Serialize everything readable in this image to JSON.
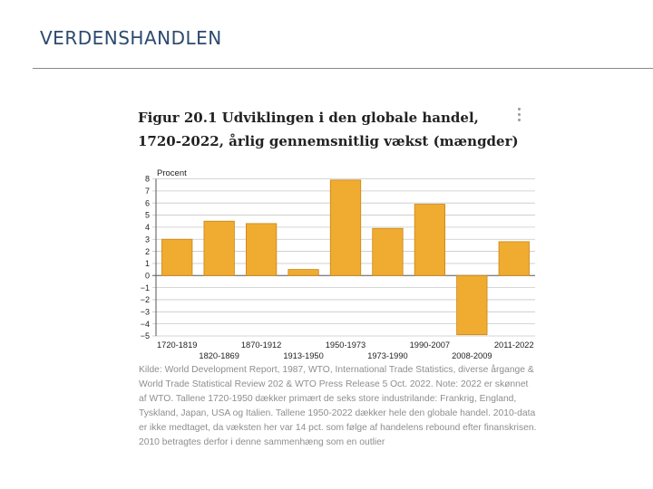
{
  "slide": {
    "title": "VERDENSHANDLEN"
  },
  "figure": {
    "title": "Figur 20.1 Udviklingen i den globale handel, 1720-2022, årlig gennemsnitlig vækst (mængder)",
    "menu_icon": "kebab-menu-icon",
    "source": "Kilde: World Development Report, 1987, WTO, International Trade Statistics, diverse årgange & World Trade Statistical Review 202 & WTO Press Release 5 Oct. 2022. Note: 2022 er skønnet af WTO. Tallene 1720-1950 dækker primært de seks store industrilande: Frankrig, England, Tyskland, Japan, USA og Italien. Tallene 1950-2022 dækker hele den globale handel. 2010-data er ikke medtaget, da væksten her var 14 pct. som følge af handelens rebound efter finanskrisen. 2010 betragtes derfor i denne sammenhæng som en outlier"
  },
  "chart_data": {
    "type": "bar",
    "title": "Figur 20.1 Udviklingen i den globale handel, 1720-2022, årlig gennemsnitlig vækst (mængder)",
    "ylabel": "Procent",
    "xlabel": "",
    "categories": [
      "1720-1819",
      "1820-1869",
      "1870-1912",
      "1913-1950",
      "1950-1973",
      "1973-1990",
      "1990-2007",
      "2008-2009",
      "2011-2022"
    ],
    "values": [
      3.0,
      4.5,
      4.3,
      0.5,
      7.9,
      3.9,
      5.9,
      -4.9,
      2.8
    ],
    "ylim": [
      -5,
      8
    ],
    "yticks": [
      "8",
      "7",
      "6",
      "5",
      "4",
      "3",
      "2",
      "1",
      "0",
      "−1",
      "−2",
      "−3",
      "−4",
      "−5"
    ],
    "grid": true,
    "bar_color": "#f0ac30",
    "bar_edge_color": "#c98512"
  }
}
